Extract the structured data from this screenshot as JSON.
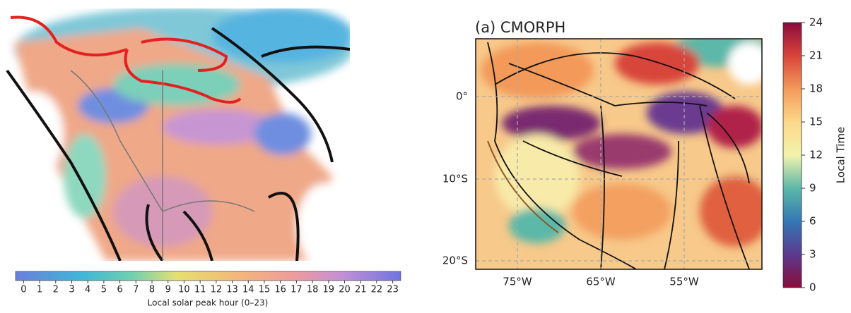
{
  "left_panel": {
    "colorbar": {
      "ticks": [
        0,
        1,
        2,
        3,
        4,
        5,
        6,
        7,
        8,
        9,
        10,
        11,
        12,
        13,
        14,
        15,
        16,
        17,
        18,
        19,
        20,
        21,
        22,
        23
      ],
      "label": "Local solar peak hour (0–23)"
    }
  },
  "right_panel": {
    "title": "(a) CMORPH",
    "lat_labels": [
      "0°",
      "10°S",
      "20°S"
    ],
    "lon_labels": [
      "75°W",
      "65°W",
      "55°W"
    ],
    "colorbar": {
      "ticks": [
        0,
        3,
        6,
        9,
        12,
        15,
        18,
        21,
        24
      ],
      "label": "Local Time"
    }
  }
}
